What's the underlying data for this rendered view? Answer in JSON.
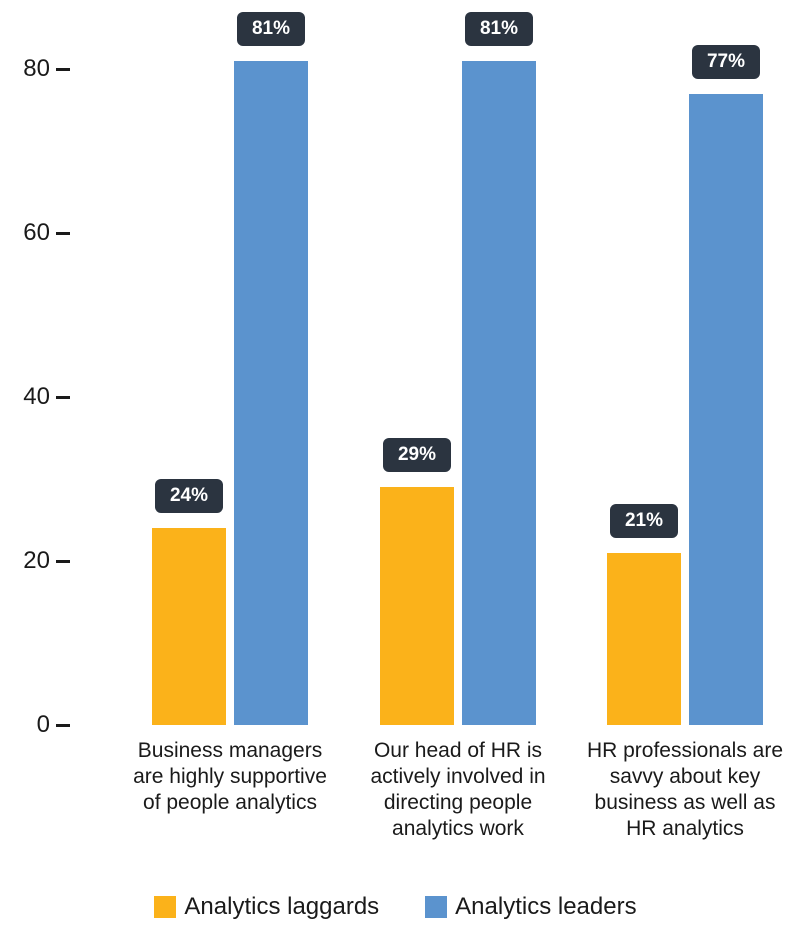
{
  "chart_data": {
    "type": "bar",
    "categories": [
      "Business managers\nare highly supportive\nof people analytics",
      "Our head of HR is\nactively involved in\ndirecting people\nanalytics work",
      "HR professionals are\nsavvy about key\nbusiness as well as\nHR analytics"
    ],
    "series": [
      {
        "name": "Analytics laggards",
        "values": [
          24,
          29,
          21
        ],
        "labels": [
          "24%",
          "29%",
          "21%"
        ],
        "color": "#fbb21a"
      },
      {
        "name": "Analytics leaders",
        "values": [
          81,
          81,
          77
        ],
        "labels": [
          "81%",
          "81%",
          "77%"
        ],
        "color": "#5b93ce"
      }
    ],
    "y_ticks": [
      "0",
      "20",
      "40",
      "60",
      "80"
    ],
    "ylim": [
      0,
      80
    ],
    "grid": false,
    "legend_position": "bottom-center"
  }
}
